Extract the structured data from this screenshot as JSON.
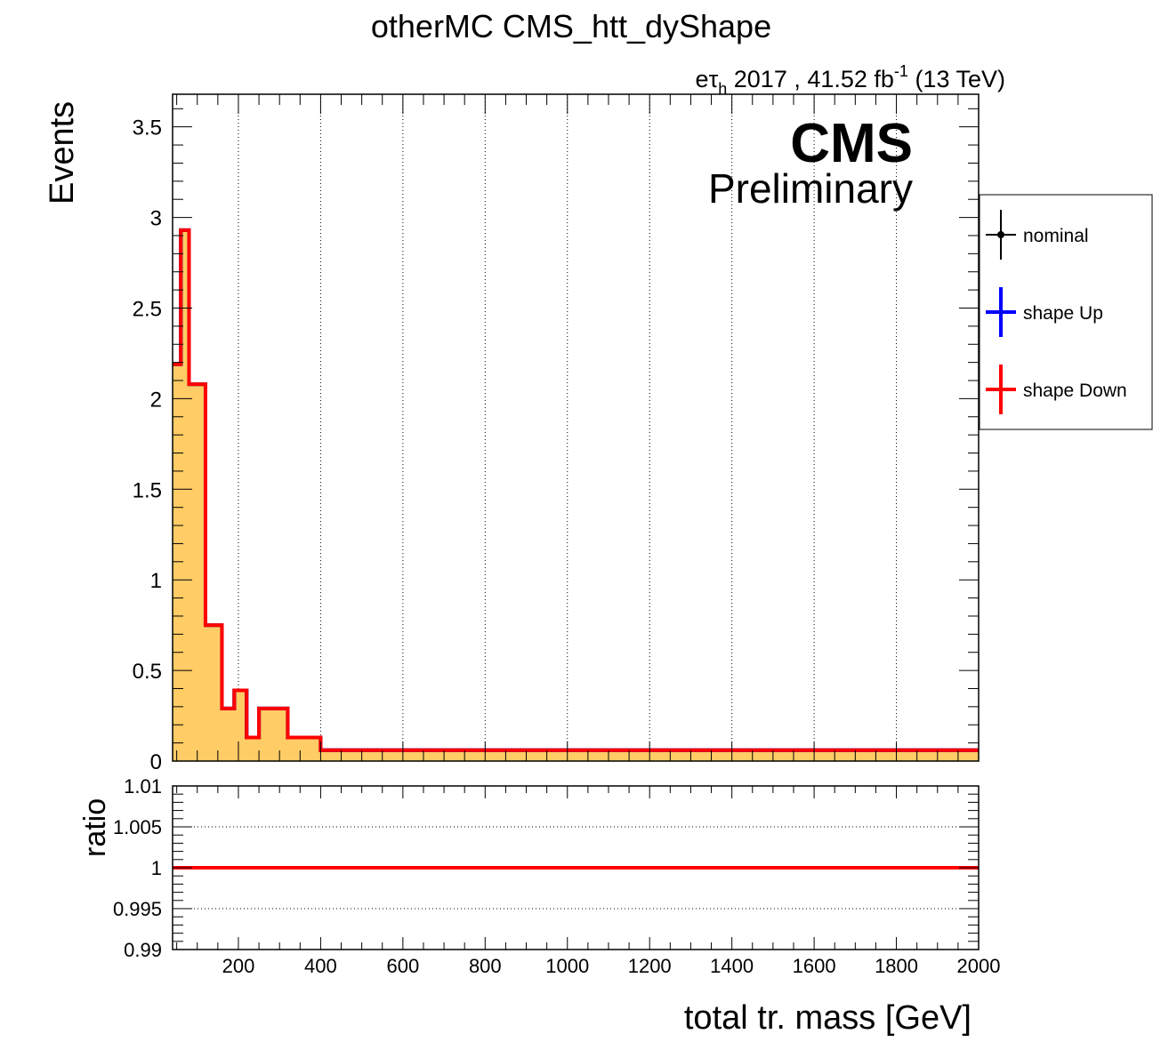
{
  "chart_data": {
    "type": "step",
    "title": "otherMC CMS_htt_dyShape",
    "lumi": {
      "channel_lead": "e",
      "channel_tau": "τ",
      "channel_sub": "h",
      "rest": " 2017 , 41.52 fb",
      "sup": "-1",
      "energy": " (13 TeV)"
    },
    "cms_label": "CMS",
    "cms_sublabel": "Preliminary",
    "xlabel": "total tr. mass [GeV]",
    "ylabel": "Events",
    "ratio_ylabel": "ratio",
    "xlim": [
      40,
      2000
    ],
    "ylim": [
      0,
      3.68
    ],
    "ratio_ylim": [
      0.99,
      1.01
    ],
    "xticks": [
      "200",
      "400",
      "600",
      "800",
      "1000",
      "1200",
      "1400",
      "1600",
      "1800",
      "2000"
    ],
    "yticks": [
      "0",
      "0.5",
      "1",
      "1.5",
      "2",
      "2.5",
      "3",
      "3.5"
    ],
    "ratio_yticks": [
      "0.99",
      "0.995",
      "1",
      "1.005",
      "1.01"
    ],
    "bin_edges": [
      40,
      60,
      80,
      120,
      160,
      190,
      220,
      250,
      320,
      400,
      2000
    ],
    "series": [
      {
        "name": "nominal",
        "color": "#000000",
        "values": [
          2.19,
          2.93,
          2.08,
          0.75,
          0.29,
          0.39,
          0.13,
          0.29,
          0.13,
          0.06
        ]
      },
      {
        "name": "shape Up",
        "color": "#0000ff",
        "values": [
          2.19,
          2.93,
          2.08,
          0.75,
          0.29,
          0.39,
          0.13,
          0.29,
          0.13,
          0.06
        ]
      },
      {
        "name": "shape Down",
        "color": "#ff0000",
        "values": [
          2.19,
          2.93,
          2.08,
          0.75,
          0.29,
          0.39,
          0.13,
          0.29,
          0.13,
          0.06
        ]
      }
    ],
    "tail_value": 0.02,
    "ratio_values": [
      1,
      1,
      1,
      1,
      1,
      1,
      1,
      1,
      1,
      1
    ],
    "fill_color": "#ffcc66",
    "legend_position": "right, outside plot"
  }
}
